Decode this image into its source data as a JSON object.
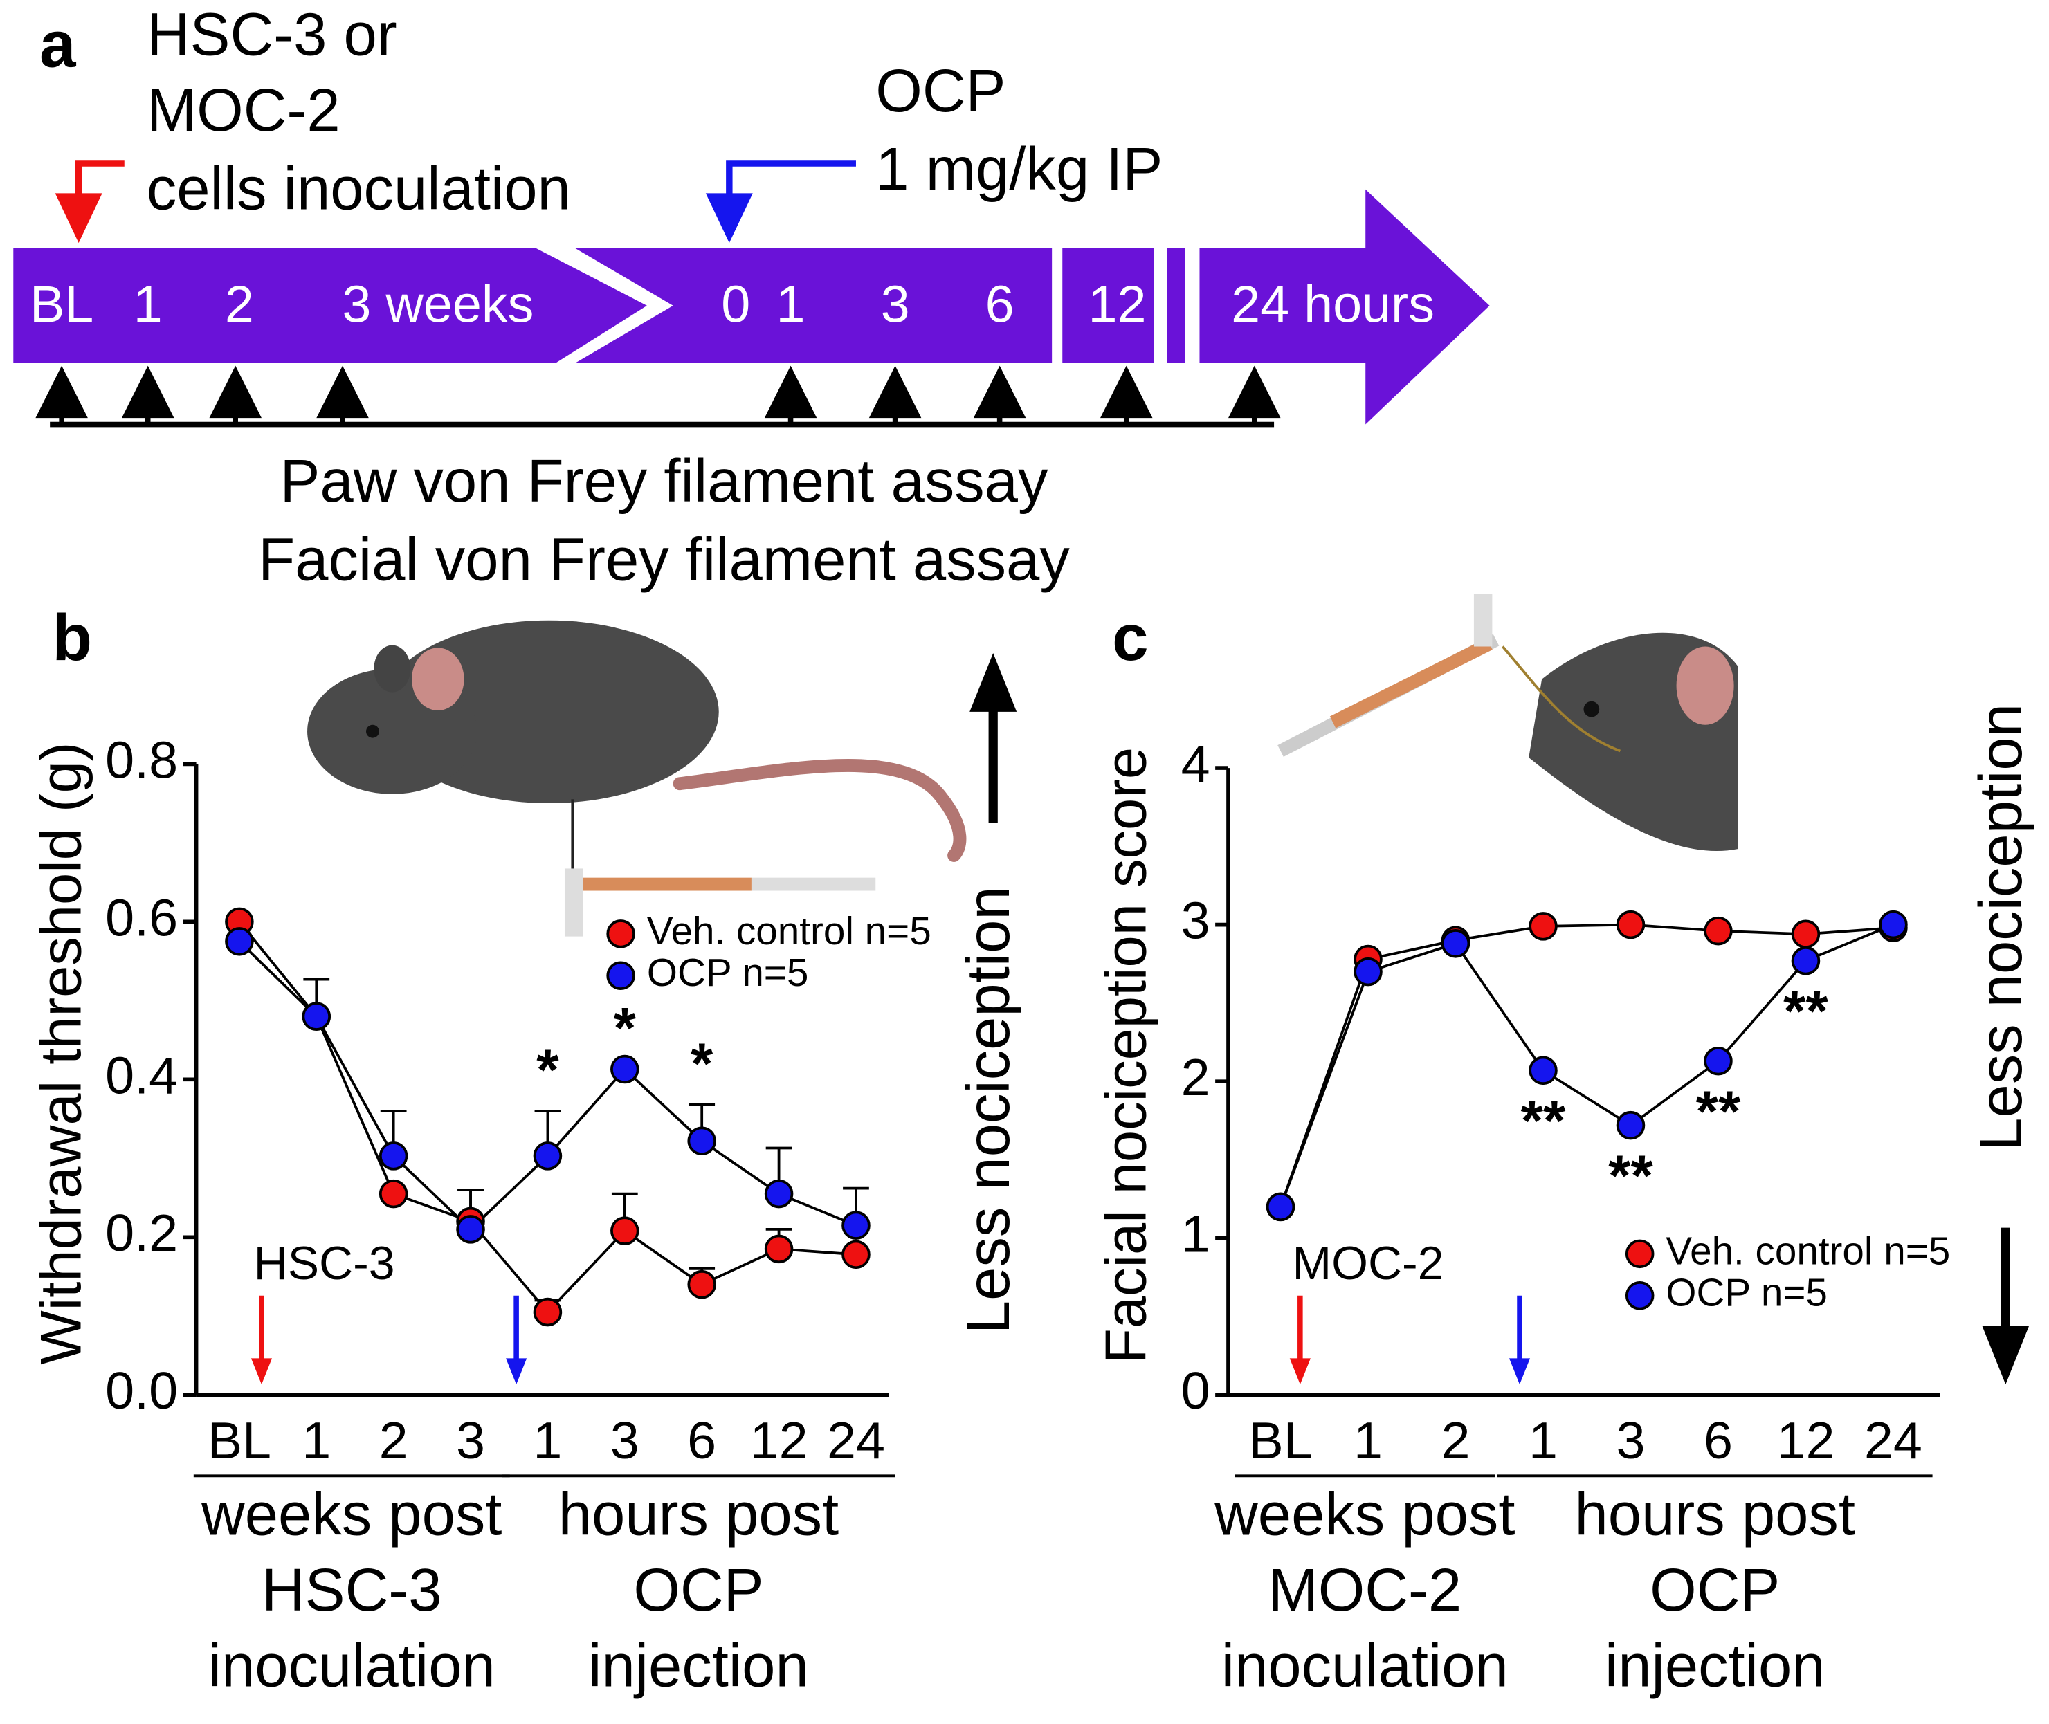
{
  "panel_a": {
    "label": "a",
    "inoculation": [
      "HSC-3 or",
      "MOC-2",
      "cells inoculation"
    ],
    "injection": [
      "OCP",
      "1 mg/kg IP"
    ],
    "timeline": [
      "BL",
      "1",
      "2",
      "3 weeks",
      "0",
      "1",
      "3",
      "6",
      "12",
      "24 hours"
    ],
    "assays": [
      "Paw von Frey filament assay",
      "Facial von Frey filament assay"
    ]
  },
  "chart_data": [
    {
      "type": "line",
      "panel": "b",
      "ylabel": "Withdrawal threshold (g)",
      "side_label": "Less nociception",
      "marker_label": "HSC-3",
      "categories": [
        "BL",
        "1",
        "2",
        "3",
        "1",
        "3",
        "6",
        "12",
        "24"
      ],
      "groups": [
        [
          "weeks post",
          "HSC-3",
          "inoculation"
        ],
        [
          "hours post",
          "OCP",
          "injection"
        ]
      ],
      "series": [
        {
          "name": "Veh. control n=5",
          "color": "#ee1111",
          "values": [
            0.6,
            0.48,
            0.255,
            0.22,
            0.105,
            0.208,
            0.14,
            0.185,
            0.178
          ],
          "errors": [
            null,
            null,
            null,
            0.04,
            0.015,
            0.047,
            0.02,
            0.025,
            null
          ]
        },
        {
          "name": "OCP n=5",
          "color": "#1515ee",
          "values": [
            0.575,
            0.48,
            0.303,
            0.21,
            0.303,
            0.413,
            0.322,
            0.255,
            0.215
          ],
          "errors": [
            null,
            0.047,
            0.057,
            0.05,
            0.057,
            null,
            0.046,
            0.058,
            0.047
          ]
        }
      ],
      "significance": [
        null,
        null,
        null,
        null,
        "*",
        "*",
        "*",
        null,
        null
      ],
      "ylim": [
        0,
        0.8
      ],
      "yticks": [
        {
          "value": 0,
          "label": "0.0"
        },
        0.2,
        0.4,
        0.6,
        0.8
      ]
    },
    {
      "type": "line",
      "panel": "c",
      "ylabel": "Facial nociception score",
      "side_label": "Less nociception",
      "marker_label": "MOC-2",
      "categories": [
        "BL",
        "1",
        "2",
        "1",
        "3",
        "6",
        "12",
        "24"
      ],
      "groups": [
        [
          "weeks post",
          "MOC-2",
          "inoculation"
        ],
        [
          "hours post",
          "OCP",
          "injection"
        ]
      ],
      "series": [
        {
          "name": "Veh. control n=5",
          "color": "#ee1111",
          "values": [
            1.2,
            2.78,
            2.9,
            2.99,
            3.0,
            2.96,
            2.94,
            2.98
          ]
        },
        {
          "name": "OCP n=5",
          "color": "#1515ee",
          "values": [
            1.2,
            2.7,
            2.88,
            2.07,
            1.72,
            2.13,
            2.77,
            3.0
          ]
        }
      ],
      "significance": [
        null,
        null,
        null,
        "**",
        "**",
        "**",
        "**",
        null
      ],
      "ylim": [
        0,
        4
      ],
      "yticks": [
        0,
        1,
        2,
        3,
        4
      ]
    }
  ]
}
